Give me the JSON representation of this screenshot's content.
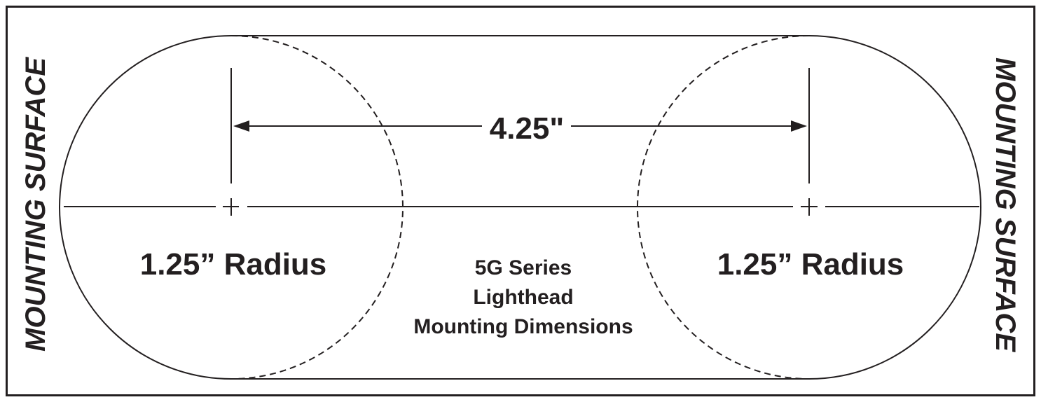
{
  "labels": {
    "mounting_surface_left": "MOUNTING SURFACE",
    "mounting_surface_right": "MOUNTING SURFACE",
    "center_distance": "4.25\"",
    "radius_left": "1.25” Radius",
    "radius_right": "1.25” Radius",
    "title_line1": "5G Series",
    "title_line2": "Lighthead",
    "title_line3": "Mounting Dimensions"
  },
  "colors": {
    "ink": "#231f20",
    "background": "#ffffff"
  }
}
